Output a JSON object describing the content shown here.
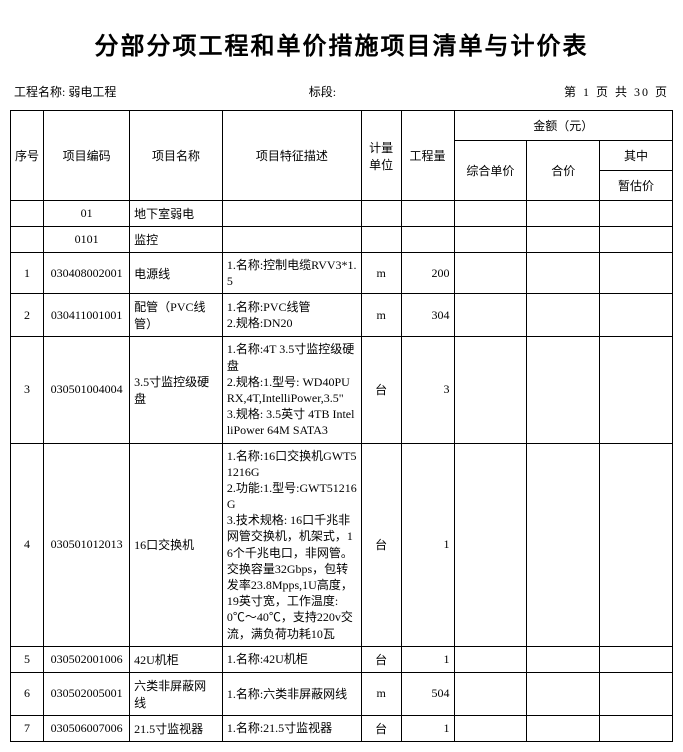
{
  "title": "分部分项工程和单价措施项目清单与计价表",
  "meta": {
    "project_label": "工程名称:",
    "project_name": "弱电工程",
    "section_label": "标段:",
    "page_text": "第 1 页 共 30 页"
  },
  "headers": {
    "seq": "序号",
    "code": "项目编码",
    "name": "项目名称",
    "desc": "项目特征描述",
    "unit": "计量单位",
    "qty": "工程量",
    "amount_group": "金额（元）",
    "unit_price": "综合单价",
    "total_price": "合价",
    "of_which": "其中",
    "provisional": "暂估价"
  },
  "rows": [
    {
      "seq": "",
      "code": "01",
      "name": "地下室弱电",
      "desc": [],
      "unit": "",
      "qty": ""
    },
    {
      "seq": "",
      "code": "0101",
      "name": "监控",
      "desc": [],
      "unit": "",
      "qty": ""
    },
    {
      "seq": "1",
      "code": "030408002001",
      "name": "电源线",
      "desc": [
        "1.名称:控制电缆RVV3*1.5"
      ],
      "unit": "m",
      "qty": "200"
    },
    {
      "seq": "2",
      "code": "030411001001",
      "name": "配管（PVC线管）",
      "desc": [
        "1.名称:PVC线管",
        "2.规格:DN20"
      ],
      "unit": "m",
      "qty": "304"
    },
    {
      "seq": "3",
      "code": "030501004004",
      "name": "3.5寸监控级硬盘",
      "desc": [
        "1.名称:4T 3.5寸监控级硬盘",
        "2.规格:1.型号: WD40PURX,4T,IntelliPower,3.5\"",
        "3.规格: 3.5英寸 4TB IntelliPower 64M SATA3"
      ],
      "unit": "台",
      "qty": "3"
    },
    {
      "seq": "4",
      "code": "030501012013",
      "name": "16口交换机",
      "desc": [
        "1.名称:16口交换机GWT51216G",
        "2.功能:1.型号:GWT51216G",
        "3.技术规格: 16口千兆非网管交换机，机架式，16个千兆电口，非网管。交换容量32Gbps，包转发率23.8Mpps,1U高度，19英寸宽，工作温度: 0℃～40℃，支持220v交流，满负荷功耗10瓦"
      ],
      "unit": "台",
      "qty": "1"
    },
    {
      "seq": "5",
      "code": "030502001006",
      "name": "42U机柜",
      "desc": [
        "1.名称:42U机柜"
      ],
      "unit": "台",
      "qty": "1"
    },
    {
      "seq": "6",
      "code": "030502005001",
      "name": "六类非屏蔽网线",
      "desc": [
        "1.名称:六类非屏蔽网线"
      ],
      "unit": "m",
      "qty": "504"
    },
    {
      "seq": "7",
      "code": "030506007006",
      "name": "21.5寸监视器",
      "desc": [
        "1.名称:21.5寸监视器"
      ],
      "unit": "台",
      "qty": "1"
    }
  ]
}
